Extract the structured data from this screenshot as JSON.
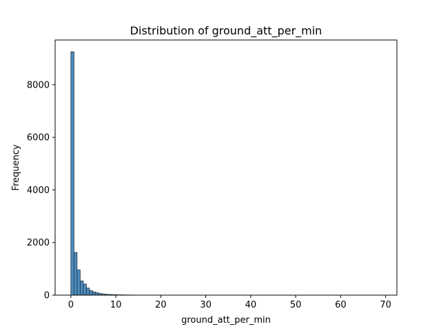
{
  "chart_data": {
    "type": "bar",
    "subtype": "histogram",
    "title": "Distribution of ground_att_per_min",
    "xlabel": "ground_att_per_min",
    "ylabel": "Frequency",
    "xlim": [
      -3.5,
      72.5
    ],
    "ylim": [
      0,
      9700
    ],
    "x_ticks": [
      0,
      10,
      20,
      30,
      40,
      50,
      60,
      70
    ],
    "y_ticks": [
      0,
      2000,
      4000,
      6000,
      8000
    ],
    "bin_width": 0.69,
    "bin_start": 0,
    "values": [
      9250,
      1620,
      960,
      540,
      420,
      270,
      170,
      120,
      90,
      60,
      45,
      30,
      25,
      20,
      15,
      12,
      10,
      8,
      6,
      5,
      4,
      3,
      3,
      2,
      2,
      1,
      1,
      1,
      1,
      1
    ],
    "bar_color": "#4c8dbf",
    "edge_color": "#1f2a33",
    "grid": false,
    "legend": "none"
  }
}
